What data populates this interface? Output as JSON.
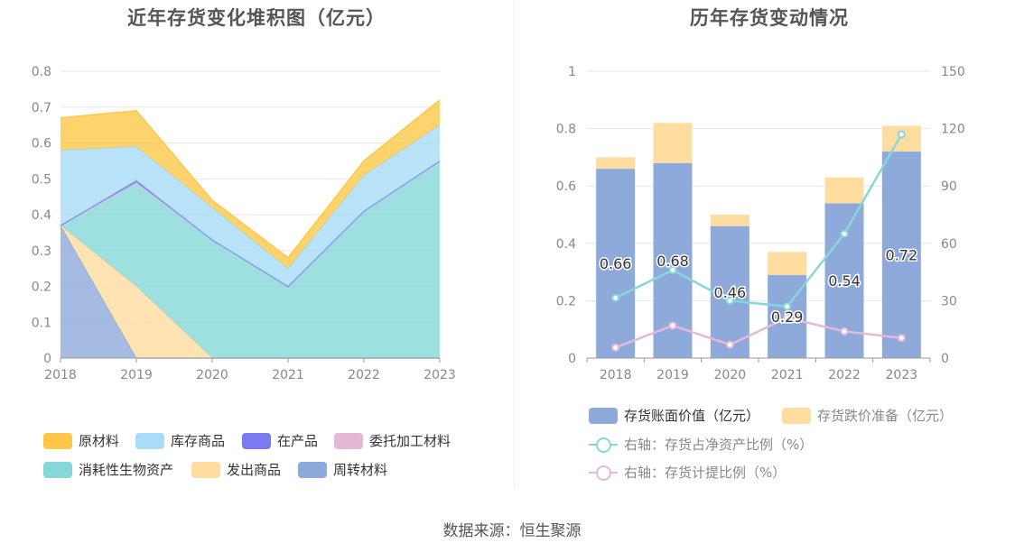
{
  "source_label": "数据来源：恒生聚源",
  "chart_data": [
    {
      "type": "area",
      "title": "近年存货变化堆积图（亿元）",
      "x": [
        "2018",
        "2019",
        "2020",
        "2021",
        "2022",
        "2023"
      ],
      "ylim": [
        0,
        0.8
      ],
      "y_ticks": [
        "0",
        "0.1",
        "0.2",
        "0.3",
        "0.4",
        "0.5",
        "0.6",
        "0.7",
        "0.8"
      ],
      "grid": true,
      "legend_position": "bottom",
      "stacked": true,
      "series": [
        {
          "name": "周转材料",
          "color": "#8eaadb",
          "values": [
            0.37,
            0.0,
            0.0,
            0.0,
            0.0,
            0.0
          ]
        },
        {
          "name": "发出商品",
          "color": "#ffdca0",
          "values": [
            0.0,
            0.2,
            0.0,
            0.0,
            0.0,
            0.0
          ]
        },
        {
          "name": "消耗性生物资产",
          "color": "#86d8d8",
          "values": [
            0.0,
            0.29,
            0.33,
            0.2,
            0.41,
            0.55
          ]
        },
        {
          "name": "委托加工材料",
          "color": "#e6b8d8",
          "values": [
            0.0,
            0.0,
            0.0,
            0.0,
            0.0,
            0.0
          ]
        },
        {
          "name": "在产品",
          "color": "#7b7bf0",
          "values": [
            0.0,
            0.005,
            0.0,
            0.0,
            0.0,
            0.0
          ]
        },
        {
          "name": "库存商品",
          "color": "#a8dcf7",
          "values": [
            0.21,
            0.095,
            0.09,
            0.05,
            0.1,
            0.1
          ]
        },
        {
          "name": "原材料",
          "color": "#fdc84a",
          "values": [
            0.09,
            0.1,
            0.02,
            0.03,
            0.04,
            0.07
          ]
        }
      ]
    },
    {
      "type": "bar",
      "title": "历年存货变动情况",
      "x": [
        "2018",
        "2019",
        "2020",
        "2021",
        "2022",
        "2023"
      ],
      "ylim": [
        0,
        1
      ],
      "y_ticks": [
        "0",
        "0.2",
        "0.4",
        "0.6",
        "0.8",
        "1"
      ],
      "y2lim": [
        0,
        150
      ],
      "y2_ticks": [
        "0",
        "30",
        "60",
        "90",
        "120",
        "150"
      ],
      "grid": true,
      "legend_position": "bottom",
      "stacked": true,
      "series": [
        {
          "name": "存货账面价值（亿元）",
          "color": "#8eaadb",
          "axis": "left",
          "kind": "bar",
          "values": [
            0.66,
            0.68,
            0.46,
            0.29,
            0.54,
            0.72
          ],
          "labels": [
            "0.66",
            "0.68",
            "0.46",
            "0.29",
            "0.54",
            "0.72"
          ]
        },
        {
          "name": "存货跌价准备（亿元）",
          "color": "#ffdca0",
          "axis": "left",
          "kind": "bar",
          "values": [
            0.04,
            0.14,
            0.04,
            0.08,
            0.09,
            0.09
          ]
        },
        {
          "name": "右轴：存货占净资产比例（%）",
          "color": "#86d8d8",
          "axis": "right",
          "kind": "line",
          "values": [
            31.5,
            46,
            30,
            27,
            65,
            117
          ]
        },
        {
          "name": "右轴：存货计提比例（%）",
          "color": "#e6b8d8",
          "axis": "right",
          "kind": "line",
          "values": [
            5.5,
            17,
            7,
            21,
            14,
            10.5
          ]
        }
      ]
    }
  ]
}
